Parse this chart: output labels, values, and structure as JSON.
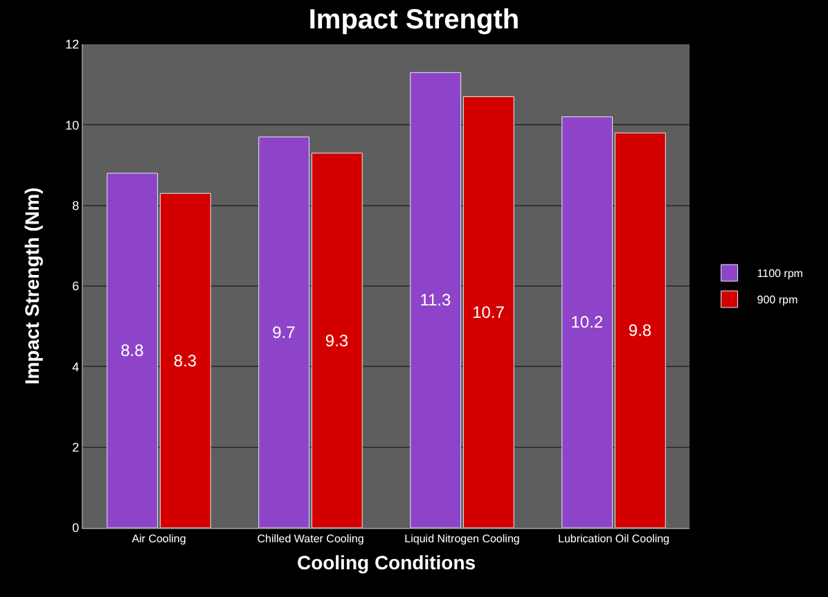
{
  "chart_data": {
    "type": "bar",
    "title": "Impact Strength",
    "xlabel": "Cooling Conditions",
    "ylabel": "Impact Strength (Nm)",
    "categories": [
      "Air Cooling",
      "Chilled Water Cooling",
      "Liquid Nitrogen Cooling",
      "Lubrication Oil Cooling"
    ],
    "series": [
      {
        "name": "1100 rpm",
        "color": "#8e44c8",
        "values": [
          8.8,
          9.7,
          11.3,
          10.2
        ]
      },
      {
        "name": "900 rpm",
        "color": "#d40000",
        "values": [
          8.3,
          9.3,
          10.7,
          9.8
        ]
      }
    ],
    "ylim": [
      0,
      12
    ],
    "yticks": [
      0,
      2,
      4,
      6,
      8,
      10,
      12
    ],
    "grid": "y",
    "legend": "right",
    "data_labels": true
  }
}
